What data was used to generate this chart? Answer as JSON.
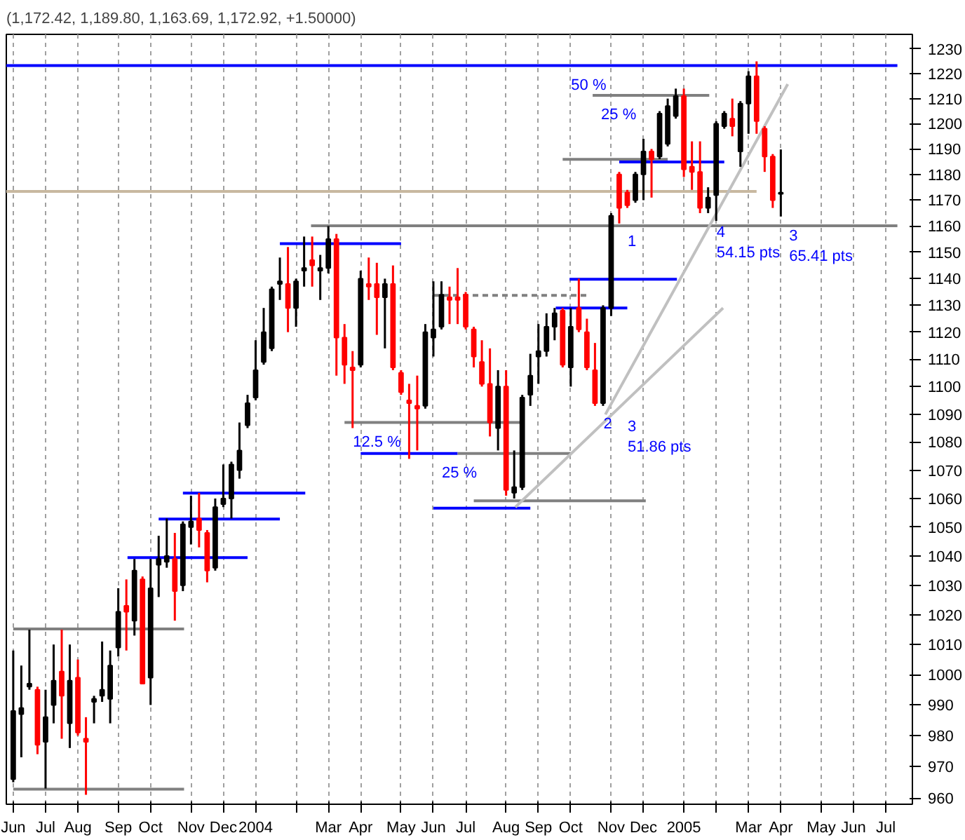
{
  "chart_data": {
    "type": "candlestick",
    "title": "(1,172.42, 1,189.80, 1,163.69, 1,172.92, +1.50000)",
    "x": [
      "2003-06-06",
      "2003-06-13",
      "2003-06-20",
      "2003-06-27",
      "2003-07-04",
      "2003-07-11",
      "2003-07-18",
      "2003-07-25",
      "2003-08-01",
      "2003-08-08",
      "2003-08-15",
      "2003-08-22",
      "2003-08-29",
      "2003-09-05",
      "2003-09-12",
      "2003-09-19",
      "2003-09-26",
      "2003-10-03",
      "2003-10-10",
      "2003-10-17",
      "2003-10-24",
      "2003-10-31",
      "2003-11-07",
      "2003-11-14",
      "2003-11-21",
      "2003-11-28",
      "2003-12-05",
      "2003-12-12",
      "2003-12-19",
      "2003-12-26",
      "2004-01-02",
      "2004-01-09",
      "2004-01-16",
      "2004-01-23",
      "2004-01-30",
      "2004-02-06",
      "2004-02-13",
      "2004-02-20",
      "2004-02-27",
      "2004-03-05",
      "2004-03-12",
      "2004-03-19",
      "2004-03-26",
      "2004-04-02",
      "2004-04-09",
      "2004-04-16",
      "2004-04-23",
      "2004-04-30",
      "2004-05-07",
      "2004-05-14",
      "2004-05-21",
      "2004-05-28",
      "2004-06-04",
      "2004-06-11",
      "2004-06-18",
      "2004-06-25",
      "2004-07-02",
      "2004-07-09",
      "2004-07-16",
      "2004-07-23",
      "2004-07-30",
      "2004-08-06",
      "2004-08-13",
      "2004-08-20",
      "2004-08-27",
      "2004-09-03",
      "2004-09-10",
      "2004-09-17",
      "2004-09-24",
      "2004-10-01",
      "2004-10-08",
      "2004-10-15",
      "2004-10-22",
      "2004-10-29",
      "2004-11-05",
      "2004-11-12",
      "2004-11-19",
      "2004-11-26",
      "2004-12-03",
      "2004-12-10",
      "2004-12-17",
      "2004-12-24",
      "2004-12-31",
      "2005-01-07",
      "2005-01-14",
      "2005-01-21",
      "2005-01-28",
      "2005-02-04",
      "2005-02-11",
      "2005-02-18",
      "2005-02-25",
      "2005-03-04",
      "2005-03-11",
      "2005-03-18",
      "2005-03-25",
      "2005-04-01"
    ],
    "ohlc": [
      [
        966,
        1008,
        965,
        988
      ],
      [
        987,
        1003,
        973,
        989
      ],
      [
        996,
        1015,
        995,
        997
      ],
      [
        995,
        996,
        974,
        977
      ],
      [
        978,
        995,
        963,
        986
      ],
      [
        990,
        1010,
        984,
        998
      ],
      [
        1001,
        1015,
        979,
        993
      ],
      [
        984,
        1010,
        976,
        998
      ],
      [
        999,
        1005,
        980,
        981
      ],
      [
        979,
        986,
        961,
        978
      ],
      [
        991,
        993,
        984,
        992
      ],
      [
        993,
        1011,
        991,
        995
      ],
      [
        992,
        1008,
        984,
        1003
      ],
      [
        1009,
        1029,
        1006,
        1021
      ],
      [
        1023,
        1032,
        1008,
        1021
      ],
      [
        1018,
        1039,
        1013,
        1035
      ],
      [
        1032,
        1033,
        997,
        997
      ],
      [
        999,
        1039,
        990,
        1029
      ],
      [
        1037,
        1047,
        1026,
        1039
      ],
      [
        1038,
        1053,
        1036,
        1040
      ],
      [
        1039,
        1048,
        1018,
        1028
      ],
      [
        1030,
        1052,
        1028,
        1051
      ],
      [
        1050,
        1061,
        1044,
        1052
      ],
      [
        1053,
        1062,
        1043,
        1049
      ],
      [
        1048,
        1049,
        1031,
        1035
      ],
      [
        1036,
        1060,
        1035,
        1057
      ],
      [
        1058,
        1072,
        1057,
        1060
      ],
      [
        1060,
        1073,
        1053,
        1072
      ],
      [
        1070,
        1087,
        1067,
        1077
      ],
      [
        1086,
        1097,
        1085,
        1094
      ],
      [
        1096,
        1117,
        1095,
        1106
      ],
      [
        1109,
        1129,
        1108,
        1120
      ],
      [
        1114,
        1137,
        1113,
        1136
      ],
      [
        1138,
        1148,
        1132,
        1139
      ],
      [
        1138,
        1152,
        1120,
        1129
      ],
      [
        1129,
        1140,
        1122,
        1139
      ],
      [
        1143,
        1156,
        1137,
        1144
      ],
      [
        1147,
        1156,
        1137,
        1145
      ],
      [
        1143,
        1149,
        1132,
        1144
      ],
      [
        1144,
        1160,
        1142,
        1155
      ],
      [
        1155,
        1157,
        1104,
        1118
      ],
      [
        1118,
        1123,
        1101,
        1108
      ],
      [
        1107,
        1113,
        1085,
        1106
      ],
      [
        1108,
        1143,
        1107,
        1140
      ],
      [
        1138,
        1148,
        1132,
        1137
      ],
      [
        1138,
        1146,
        1119,
        1133
      ],
      [
        1133,
        1140,
        1114,
        1138
      ],
      [
        1138,
        1145,
        1106,
        1107
      ],
      [
        1105,
        1106,
        1097,
        1098
      ],
      [
        1095,
        1101,
        1074,
        1094
      ],
      [
        1093,
        1104,
        1077,
        1092
      ],
      [
        1093,
        1123,
        1092,
        1120
      ],
      [
        1118,
        1139,
        1111,
        1121
      ],
      [
        1122,
        1139,
        1121,
        1134
      ],
      [
        1133,
        1137,
        1123,
        1132
      ],
      [
        1133,
        1144,
        1123,
        1132
      ],
      [
        1134,
        1135,
        1121,
        1122
      ],
      [
        1121,
        1122,
        1107,
        1111
      ],
      [
        1109,
        1117,
        1100,
        1101
      ],
      [
        1101,
        1114,
        1082,
        1087
      ],
      [
        1085,
        1106,
        1077,
        1100
      ],
      [
        1100,
        1106,
        1061,
        1063
      ],
      [
        1062,
        1077,
        1060,
        1064
      ],
      [
        1064,
        1097,
        1063,
        1096
      ],
      [
        1097,
        1112,
        1093,
        1104
      ],
      [
        1111,
        1123,
        1101,
        1113
      ],
      [
        1113,
        1127,
        1111,
        1122
      ],
      [
        1122,
        1129,
        1117,
        1127
      ],
      [
        1128,
        1129,
        1107,
        1108
      ],
      [
        1107,
        1129,
        1100,
        1122
      ],
      [
        1129,
        1140,
        1120,
        1121
      ],
      [
        1120,
        1125,
        1106,
        1107
      ],
      [
        1106,
        1116,
        1093,
        1094
      ],
      [
        1094,
        1130,
        1093,
        1129
      ],
      [
        1129,
        1165,
        1126,
        1164
      ],
      [
        1180,
        1181,
        1161,
        1167
      ],
      [
        1173,
        1174,
        1167,
        1168
      ],
      [
        1170,
        1181,
        1169,
        1180
      ],
      [
        1180,
        1194,
        1170,
        1189
      ],
      [
        1189,
        1190,
        1171,
        1186
      ],
      [
        1187,
        1205,
        1186,
        1204
      ],
      [
        1192,
        1210,
        1191,
        1207
      ],
      [
        1203,
        1214,
        1202,
        1211
      ],
      [
        1211,
        1214,
        1179,
        1182
      ],
      [
        1183,
        1193,
        1174,
        1181
      ],
      [
        1181,
        1193,
        1165,
        1167
      ],
      [
        1167,
        1175,
        1165,
        1171
      ],
      [
        1172,
        1201,
        1162,
        1200
      ],
      [
        1199,
        1205,
        1198,
        1204
      ],
      [
        1202,
        1210,
        1195,
        1199
      ],
      [
        1189,
        1209,
        1183,
        1208
      ],
      [
        1208,
        1221,
        1196,
        1219
      ],
      [
        1219,
        1225,
        1196,
        1201
      ],
      [
        1198,
        1199,
        1181,
        1187
      ],
      [
        1187,
        1188,
        1167,
        1170
      ],
      [
        1172.42,
        1189.8,
        1163.69,
        1172.92
      ]
    ],
    "colors": [
      "#000000",
      "#000000",
      "#000000",
      "#ff0000",
      "#000000",
      "#000000",
      "#ff0000",
      "#000000",
      "#ff0000",
      "#ff0000",
      "#000000",
      "#000000",
      "#000000",
      "#000000",
      "#ff0000",
      "#000000",
      "#ff0000",
      "#000000",
      "#000000",
      "#000000",
      "#ff0000",
      "#000000",
      "#000000",
      "#ff0000",
      "#ff0000",
      "#000000",
      "#000000",
      "#000000",
      "#000000",
      "#000000",
      "#000000",
      "#000000",
      "#000000",
      "#000000",
      "#ff0000",
      "#000000",
      "#000000",
      "#ff0000",
      "#000000",
      "#000000",
      "#ff0000",
      "#ff0000",
      "#ff0000",
      "#000000",
      "#ff0000",
      "#ff0000",
      "#000000",
      "#ff0000",
      "#ff0000",
      "#ff0000",
      "#ff0000",
      "#000000",
      "#000000",
      "#000000",
      "#ff0000",
      "#ff0000",
      "#ff0000",
      "#ff0000",
      "#ff0000",
      "#ff0000",
      "#000000",
      "#ff0000",
      "#000000",
      "#000000",
      "#000000",
      "#000000",
      "#000000",
      "#000000",
      "#ff0000",
      "#000000",
      "#ff0000",
      "#ff0000",
      "#ff0000",
      "#000000",
      "#000000",
      "#ff0000",
      "#ff0000",
      "#000000",
      "#000000",
      "#ff0000",
      "#000000",
      "#000000",
      "#000000",
      "#ff0000",
      "#ff0000",
      "#ff0000",
      "#000000",
      "#000000",
      "#000000",
      "#ff0000",
      "#000000",
      "#000000",
      "#ff0000",
      "#ff0000",
      "#ff0000",
      "#000000"
    ],
    "xlim": [
      "2003-05-31",
      "2005-07-24"
    ],
    "xticks": [
      {
        "value": "2003-06-06",
        "label": "Jun"
      },
      {
        "value": "2003-07-04",
        "label": "Jul"
      },
      {
        "value": "2003-08-01",
        "label": "Aug"
      },
      {
        "value": "2003-09-05",
        "label": "Sep"
      },
      {
        "value": "2003-10-03",
        "label": "Oct"
      },
      {
        "value": "2003-11-07",
        "label": "Nov"
      },
      {
        "value": "2003-12-05",
        "label": "Dec"
      },
      {
        "value": "2004-01-02",
        "label": "2004"
      },
      {
        "value": "2004-02-06",
        "label": null
      },
      {
        "value": "2004-03-05",
        "label": "Mar"
      },
      {
        "value": "2004-04-02",
        "label": "Apr"
      },
      {
        "value": "2004-05-07",
        "label": "May"
      },
      {
        "value": "2004-06-04",
        "label": "Jun"
      },
      {
        "value": "2004-07-02",
        "label": "Jul"
      },
      {
        "value": "2004-08-06",
        "label": "Aug"
      },
      {
        "value": "2004-09-03",
        "label": "Sep"
      },
      {
        "value": "2004-10-01",
        "label": "Oct"
      },
      {
        "value": "2004-11-05",
        "label": "Nov"
      },
      {
        "value": "2004-12-03",
        "label": "Dec"
      },
      {
        "value": "2005-01-07",
        "label": "2005"
      },
      {
        "value": "2005-02-04",
        "label": null
      },
      {
        "value": "2005-03-04",
        "label": "Mar"
      },
      {
        "value": "2005-04-01",
        "label": "Apr"
      },
      {
        "value": "2005-05-06",
        "label": "May"
      },
      {
        "value": "2005-06-03",
        "label": "Jun"
      },
      {
        "value": "2005-07-01",
        "label": "Jul"
      }
    ],
    "ylim": [
      958,
      1236
    ],
    "yticks": [
      960,
      970,
      980,
      990,
      1000,
      1010,
      1020,
      1030,
      1040,
      1050,
      1060,
      1070,
      1080,
      1090,
      1100,
      1110,
      1120,
      1130,
      1140,
      1150,
      1160,
      1170,
      1180,
      1190,
      1200,
      1210,
      1220,
      1230
    ],
    "log": true,
    "grid": "x",
    "series": [
      {
        "type": "line",
        "color": "#808080",
        "x": [
          "2003-06-06",
          "2003-11-01"
        ],
        "values": [
          1015.2,
          1015.2
        ]
      },
      {
        "type": "line",
        "color": "#808080",
        "x": [
          "2003-06-06",
          "2003-11-01"
        ],
        "values": [
          962.8,
          962.8
        ]
      },
      {
        "type": "line",
        "color": "#0000ff",
        "x": [
          "2003-09-13",
          "2003-12-26"
        ],
        "values": [
          1039.5,
          1039.5
        ]
      },
      {
        "type": "line",
        "color": "#0000ff",
        "x": [
          "2003-10-10",
          "2004-01-23"
        ],
        "values": [
          1052.8,
          1052.8
        ]
      },
      {
        "type": "line",
        "color": "#0000ff",
        "x": [
          "2003-10-31",
          "2004-02-14"
        ],
        "values": [
          1061.9,
          1061.9
        ]
      },
      {
        "type": "line",
        "color": "#0000ff",
        "x": [
          "2004-01-23",
          "2004-05-07"
        ],
        "values": [
          1153.3,
          1153.3
        ]
      },
      {
        "type": "line",
        "color": "#808080",
        "x": [
          "2004-02-19",
          "2005-07-11"
        ],
        "values": [
          1160.1,
          1160.1
        ]
      },
      {
        "type": "line",
        "color": "#808080",
        "x": [
          "2004-03-19",
          "2004-08-22"
        ],
        "values": [
          1087.0,
          1087.0
        ]
      },
      {
        "type": "line",
        "color": "#0000ff",
        "x": [
          "2004-04-02",
          "2004-06-25"
        ],
        "values": [
          1075.9,
          1075.9
        ]
      },
      {
        "type": "line",
        "color": "#808080",
        "x": [
          "2004-06-25",
          "2004-10-01"
        ],
        "values": [
          1075.9,
          1075.9
        ]
      },
      {
        "type": "line",
        "color": "#0000ff",
        "x": [
          "2004-06-04",
          "2004-08-27"
        ],
        "values": [
          1056.6,
          1056.6
        ]
      },
      {
        "type": "line",
        "color": "#808080",
        "x": [
          "2004-07-09",
          "2004-12-05"
        ],
        "values": [
          1059.2,
          1059.2
        ]
      },
      {
        "type": "line",
        "color": "#0000ff",
        "x": [
          "2004-09-18",
          "2004-11-19"
        ],
        "values": [
          1129.0,
          1129.0
        ]
      },
      {
        "type": "line",
        "color": "#0000ff",
        "x": [
          "2004-09-30",
          "2005-01-01"
        ],
        "values": [
          1139.8,
          1139.8
        ]
      },
      {
        "type": "line",
        "color": "#808080",
        "line_style": "dashed",
        "x": [
          "2004-06-04",
          "2004-10-15"
        ],
        "values": [
          1133.7,
          1133.7
        ]
      },
      {
        "type": "line",
        "color": "#808080",
        "x": [
          "2004-09-24",
          "2004-12-24"
        ],
        "values": [
          1185.9,
          1185.9
        ]
      },
      {
        "type": "line",
        "color": "#0000ff",
        "x": [
          "2004-11-12",
          "2005-02-11"
        ],
        "values": [
          1184.9,
          1184.9
        ]
      },
      {
        "type": "line",
        "color": "#808080",
        "x": [
          "2004-10-20",
          "2005-01-29"
        ],
        "values": [
          1211.3,
          1211.3
        ]
      },
      {
        "type": "line",
        "color": "#0000ff",
        "x": [
          "2003-05-31",
          "2005-07-11"
        ],
        "values": [
          1223.3,
          1223.3
        ]
      },
      {
        "type": "line",
        "color": "#c8b8a0",
        "x": [
          "2003-05-31",
          "2005-03-11"
        ],
        "values": [
          1173.4,
          1173.4
        ]
      },
      {
        "type": "line",
        "color": "#c0c0c0",
        "x": [
          "2004-08-14",
          "2005-02-10"
        ],
        "values": [
          1057.0,
          1129.0
        ]
      },
      {
        "type": "line",
        "color": "#c0c0c0",
        "x": [
          "2004-10-31",
          "2005-04-07"
        ],
        "values": [
          1089.9,
          1215.8
        ]
      }
    ],
    "annotations": [
      {
        "text": "50 %",
        "x": "2004-09-24",
        "y": 1223.3
      },
      {
        "text": "25 %",
        "x": "2004-10-20",
        "y": 1211.3
      },
      {
        "text": "12.5 %",
        "x": "2004-03-19",
        "y": 1087.0
      },
      {
        "text": "25 %",
        "x": "2004-06-04",
        "y": 1075.9
      },
      {
        "text": "1",
        "x": "2004-11-12",
        "y": 1161
      },
      {
        "text": "2",
        "x": "2004-10-22",
        "y": 1093
      },
      {
        "text": "3\n51.86 pts",
        "x": "2004-11-12",
        "y": 1092.4
      },
      {
        "text": "4\n54.15 pts",
        "x": "2005-01-28",
        "y": 1165
      },
      {
        "text": "3\n65.41 pts",
        "x": "2005-04-01",
        "y": 1163.69
      }
    ]
  }
}
